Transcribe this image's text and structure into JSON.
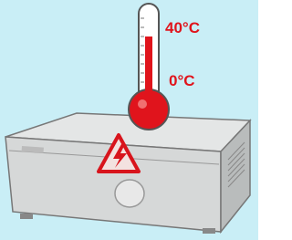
{
  "labels": {
    "high": "40°C",
    "low": "0°C"
  }
}
